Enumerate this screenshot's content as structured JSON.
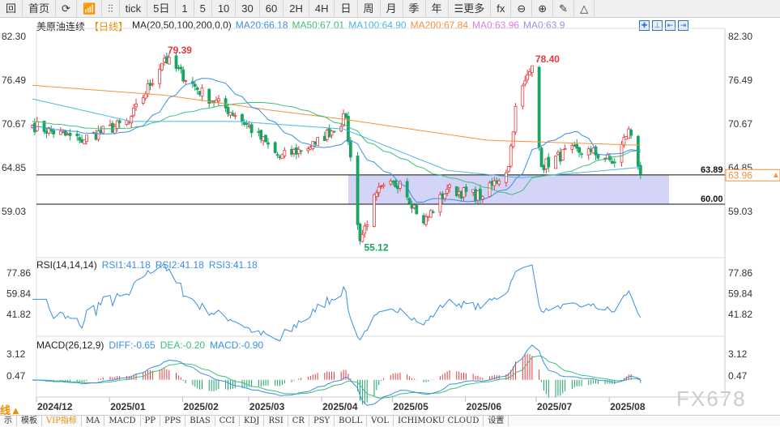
{
  "toolbar": {
    "items": [
      "回",
      "首页",
      "⟳",
      "📶",
      "⫶⫶",
      "tick",
      "5日",
      "1",
      "5",
      "10",
      "30",
      "60",
      "2H",
      "4H",
      "日",
      "周",
      "月",
      "季",
      "年",
      "☰更多",
      "fx",
      "⊖",
      "⊕",
      "✎",
      "△"
    ]
  },
  "legend": {
    "symbol": "美原油连续",
    "period": "【日线】",
    "ma_label": "MA(20,50,100,200,0,0)",
    "ma20": "MA20:66.18",
    "ma50": "MA50:67.01",
    "ma100": "MA100:64.90",
    "ma200": "MA200:67.84",
    "ma0a": "MA0:63.96",
    "ma0b": "MA0:63.9"
  },
  "colors": {
    "up": "#e8383d",
    "down": "#1aa363",
    "ma20": "#3a8ee6",
    "ma50": "#3cc07a",
    "ma100": "#4ab8e8",
    "ma200": "#f7913f",
    "ma0a": "#e37ad8",
    "ma0b": "#9b8fe8",
    "zone": "#c9c9f5"
  },
  "price_axis": {
    "ticks": [
      "82.30",
      "76.49",
      "70.67",
      "64.85",
      "59.03"
    ],
    "current": "63.96"
  },
  "levels": [
    {
      "value": 63.89,
      "label": "63.89"
    },
    {
      "value": 60.0,
      "label": "60.00"
    }
  ],
  "annotations": {
    "high1": "79.39",
    "high2": "78.40",
    "low": "55.12"
  },
  "rsi": {
    "label": "RSI(14,14,14)",
    "rsi1": "RSI1:41.18",
    "rsi2": "RSI2:41.18",
    "rsi3": "RSI3:41.18",
    "ticks": [
      "77.86",
      "59.84",
      "41.82"
    ]
  },
  "macd": {
    "label": "MACD(26,12,9)",
    "diff": "DIFF:-0.65",
    "dea": "DEA:-0.20",
    "macd": "MACD:-0.90",
    "ticks": [
      "3.12",
      "0.47"
    ]
  },
  "xaxis": {
    "left_label": "线▲",
    "months": [
      "2024/12",
      "2025/01",
      "2025/02",
      "2025/03",
      "2025/04",
      "2025/05",
      "2025/06",
      "2025/07",
      "2025/08"
    ]
  },
  "watermark": "FX678",
  "tabs": [
    "示",
    "模板",
    "VIP指标",
    "MA",
    "MACD",
    "PP",
    "PPS",
    "BIAS",
    "CCI",
    "KDJ",
    "RSI",
    "CR",
    "PSY",
    "BOLL",
    "VOL",
    "ICHIMOKU CLOUD",
    "设置"
  ],
  "price_path": [
    [
      "2024-11-20",
      70.5
    ],
    [
      "2024-12-10",
      68.5
    ],
    [
      "2024-12-31",
      71
    ],
    [
      "2025-01-15",
      79.39
    ],
    [
      "2025-02-01",
      74.5
    ],
    [
      "2025-02-15",
      71.8
    ],
    [
      "2025-03-05",
      66.2
    ],
    [
      "2025-03-20",
      68
    ],
    [
      "2025-04-02",
      71.5
    ],
    [
      "2025-04-08",
      55.12
    ],
    [
      "2025-04-15",
      61.5
    ],
    [
      "2025-04-25",
      63
    ],
    [
      "2025-05-05",
      57.5
    ],
    [
      "2025-05-15",
      62
    ],
    [
      "2025-05-30",
      61
    ],
    [
      "2025-06-10",
      65
    ],
    [
      "2025-06-13",
      73
    ],
    [
      "2025-06-20",
      78.4
    ],
    [
      "2025-06-24",
      65
    ],
    [
      "2025-07-05",
      67
    ],
    [
      "2025-07-15",
      67
    ],
    [
      "2025-07-25",
      65.5
    ],
    [
      "2025-07-31",
      70
    ],
    [
      "2025-08-05",
      63.96
    ]
  ],
  "ma100_path": [
    [
      "2024-11-20",
      74
    ],
    [
      "2025-01-01",
      71
    ],
    [
      "2025-02-15",
      71
    ],
    [
      "2025-04-01",
      70
    ],
    [
      "2025-05-15",
      64.5
    ],
    [
      "2025-06-15",
      63.5
    ],
    [
      "2025-08-05",
      64.9
    ]
  ],
  "ma200_path": [
    [
      "2024-11-20",
      75.8
    ],
    [
      "2025-01-15",
      74.5
    ],
    [
      "2025-03-01",
      72.5
    ],
    [
      "2025-04-01",
      71.3
    ],
    [
      "2025-06-01",
      68.5
    ],
    [
      "2025-08-05",
      67.84
    ]
  ]
}
